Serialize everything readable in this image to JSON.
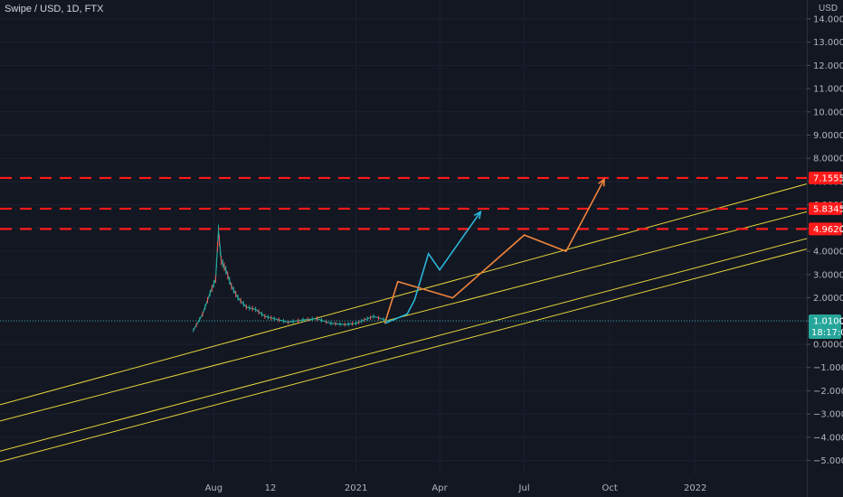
{
  "header": {
    "symbol": "Swipe / USD",
    "interval": "1D",
    "exchange": "FTX",
    "separator": ", "
  },
  "axis_unit": "USD",
  "colors": {
    "background": "#131722",
    "channel": "#e6d53a",
    "level": "#ff1a1a",
    "projection_up": "#29b6d6",
    "projection_alt": "#f0843c",
    "price_line": "#26a69a",
    "candle_up": "#26a69a",
    "candle_down": "#ef5350"
  },
  "chart_data": {
    "type": "line",
    "title": "Swipe / USD, 1D, FTX",
    "ylabel": "USD",
    "ylim": [
      -5.5,
      14.5
    ],
    "yticks": [
      14,
      13,
      12,
      11,
      10,
      9,
      8,
      7,
      6,
      5,
      4,
      3,
      2,
      1,
      0,
      -1,
      -2,
      -3,
      -4,
      -5
    ],
    "ytick_labels": [
      "14.0000",
      "13.0000",
      "12.0000",
      "11.0000",
      "10.0000",
      "9.0000",
      "8.0000",
      "7.0000",
      "6.0000",
      "5.0000",
      "4.0000",
      "3.0000",
      "2.0000",
      "1.0000",
      "0.0000",
      "−1.0000",
      "−2.0000",
      "−3.0000",
      "−4.0000",
      "−5.0000"
    ],
    "x_range": [
      "2019-12-15",
      "2022-05-01"
    ],
    "xticks": [
      {
        "label": "Aug",
        "date": "2020-08-01"
      },
      {
        "label": "12",
        "date": "2020-10-01"
      },
      {
        "label": "2021",
        "date": "2021-01-01"
      },
      {
        "label": "Apr",
        "date": "2021-04-01"
      },
      {
        "label": "Jul",
        "date": "2021-07-01"
      },
      {
        "label": "Oct",
        "date": "2021-10-01"
      },
      {
        "label": "2022",
        "date": "2022-01-01"
      }
    ],
    "levels": [
      {
        "label": "7.1555",
        "value": 7.1555
      },
      {
        "label": "5.8345",
        "value": 5.8345
      },
      {
        "label": "4.9620",
        "value": 4.962
      }
    ],
    "current_price": {
      "label": "1.0100",
      "value": 1.01,
      "countdown": "18:17:06"
    },
    "channel_lines": [
      {
        "points": [
          [
            "2019-12-15",
            -2.6
          ],
          [
            "2022-05-01",
            6.9
          ]
        ]
      },
      {
        "points": [
          [
            "2019-12-15",
            -3.3
          ],
          [
            "2022-05-01",
            5.7
          ]
        ]
      },
      {
        "points": [
          [
            "2019-12-15",
            -4.6
          ],
          [
            "2022-05-01",
            4.55
          ]
        ]
      },
      {
        "points": [
          [
            "2019-12-15",
            -5.05
          ],
          [
            "2022-05-01",
            4.1
          ]
        ]
      }
    ],
    "series": [
      {
        "name": "",
        "kind": "price",
        "points": [
          [
            "2020-07-10",
            0.6
          ],
          [
            "2020-07-20",
            1.3
          ],
          [
            "2020-07-28",
            2.2
          ],
          [
            "2020-08-03",
            2.8
          ],
          [
            "2020-08-06",
            4.9
          ],
          [
            "2020-08-09",
            3.6
          ],
          [
            "2020-08-14",
            3.2
          ],
          [
            "2020-08-20",
            2.5
          ],
          [
            "2020-08-27",
            2.0
          ],
          [
            "2020-09-05",
            1.6
          ],
          [
            "2020-09-15",
            1.5
          ],
          [
            "2020-09-25",
            1.2
          ],
          [
            "2020-10-05",
            1.1
          ],
          [
            "2020-10-20",
            0.95
          ],
          [
            "2020-11-05",
            1.05
          ],
          [
            "2020-11-20",
            1.1
          ],
          [
            "2020-12-05",
            0.9
          ],
          [
            "2020-12-20",
            0.85
          ],
          [
            "2021-01-01",
            0.9
          ],
          [
            "2021-01-10",
            1.05
          ],
          [
            "2021-01-20",
            1.2
          ],
          [
            "2021-02-05",
            1.0
          ]
        ]
      },
      {
        "name": "",
        "kind": "projection",
        "points": [
          [
            "2021-02-01",
            0.9
          ],
          [
            "2021-02-25",
            1.3
          ],
          [
            "2021-03-05",
            1.9
          ],
          [
            "2021-03-20",
            3.9
          ],
          [
            "2021-04-01",
            3.2
          ],
          [
            "2021-05-15",
            5.7
          ]
        ]
      },
      {
        "name": "",
        "kind": "projection",
        "points": [
          [
            "2021-02-01",
            0.9
          ],
          [
            "2021-02-15",
            2.7
          ],
          [
            "2021-04-15",
            2.0
          ],
          [
            "2021-07-01",
            4.7
          ],
          [
            "2021-08-15",
            4.0
          ],
          [
            "2021-09-25",
            7.1
          ]
        ]
      }
    ]
  }
}
